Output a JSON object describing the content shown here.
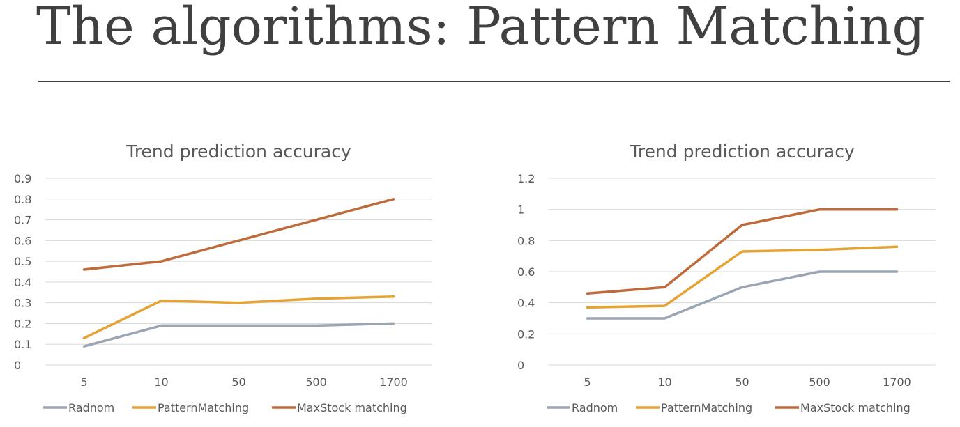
{
  "slide": {
    "title": "The algorithms: Pattern Matching"
  },
  "colors": {
    "Radnom": "#9aa6b3",
    "PatternMatching": "#e6a232",
    "MaxStock matching": "#bf6a3a",
    "gridline": "#d9d9d9",
    "text": "#595959"
  },
  "chart_data": [
    {
      "type": "line",
      "title": "Trend prediction accuracy",
      "categories": [
        "5",
        "10",
        "50",
        "500",
        "1700"
      ],
      "series": [
        {
          "name": "Radnom",
          "values": [
            0.09,
            0.19,
            0.19,
            0.19,
            0.2
          ]
        },
        {
          "name": "PatternMatching",
          "values": [
            0.13,
            0.31,
            0.3,
            0.32,
            0.33
          ]
        },
        {
          "name": "MaxStock matching",
          "values": [
            0.46,
            0.5,
            0.6,
            0.7,
            0.8
          ]
        }
      ],
      "ylim": [
        0,
        0.9
      ],
      "yticks": [
        "0",
        "0.1",
        "0.2",
        "0.3",
        "0.4",
        "0.5",
        "0.6",
        "0.7",
        "0.8",
        "0.9"
      ],
      "grid": true,
      "legend": "bottom"
    },
    {
      "type": "line",
      "title": "Trend prediction accuracy",
      "categories": [
        "5",
        "10",
        "50",
        "500",
        "1700"
      ],
      "series": [
        {
          "name": "Radnom",
          "values": [
            0.3,
            0.3,
            0.5,
            0.6,
            0.6
          ]
        },
        {
          "name": "PatternMatching",
          "values": [
            0.37,
            0.38,
            0.73,
            0.74,
            0.76
          ]
        },
        {
          "name": "MaxStock matching",
          "values": [
            0.46,
            0.5,
            0.9,
            1.0,
            1.0
          ]
        }
      ],
      "ylim": [
        0,
        1.2
      ],
      "yticks": [
        "0",
        "0.2",
        "0.4",
        "0.6",
        "0.8",
        "1",
        "1.2"
      ],
      "grid": true,
      "legend": "bottom"
    }
  ]
}
